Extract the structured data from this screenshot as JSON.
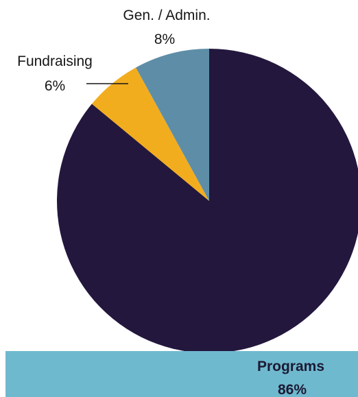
{
  "chart_data": {
    "type": "pie",
    "slices": [
      {
        "label": "Programs",
        "value": 86,
        "display": "86%",
        "color": "#23173d"
      },
      {
        "label": "Fundraising",
        "value": 6,
        "display": "6%",
        "color": "#f2ad1f"
      },
      {
        "label": "Gen. / Admin.",
        "value": 8,
        "display": "8%",
        "color": "#5e8ea7"
      }
    ],
    "start": "12 o'clock",
    "direction": "clockwise",
    "footer_band_color": "#6fb9cf"
  }
}
